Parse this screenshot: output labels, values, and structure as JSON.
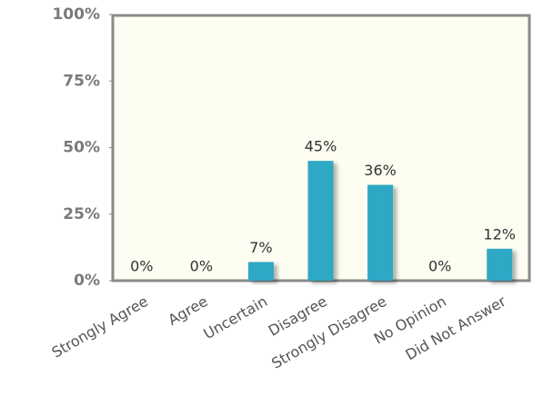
{
  "chart_data": {
    "type": "bar",
    "categories": [
      "Strongly Agree",
      "Agree",
      "Uncertain",
      "Disagree",
      "Strongly Disagree",
      "No Opinion",
      "Did Not Answer"
    ],
    "values": [
      0,
      0,
      7,
      45,
      36,
      0,
      12
    ],
    "value_labels": [
      "0%",
      "0%",
      "7%",
      "45%",
      "36%",
      "0%",
      "12%"
    ],
    "color": "#2fa8c4",
    "ylim": [
      0,
      100
    ],
    "yticks": [
      {
        "value": 0,
        "label": "0%"
      },
      {
        "value": 25,
        "label": "25%"
      },
      {
        "value": 50,
        "label": "50%"
      },
      {
        "value": 75,
        "label": "75%"
      },
      {
        "value": 100,
        "label": "100%"
      }
    ],
    "grid": false
  }
}
